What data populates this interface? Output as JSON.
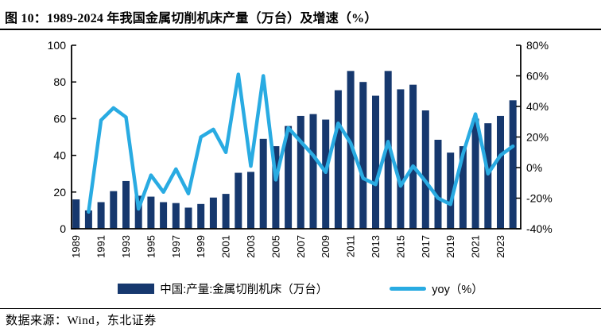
{
  "figure": {
    "title": "图 10：1989-2024 年我国金属切削机床产量（万台）及增速（%）",
    "source": "数据来源：Wind，东北证券"
  },
  "legend": {
    "bars_label": "中国:产量:金属切削机床（万台）",
    "line_label": "yoy（%）"
  },
  "colors": {
    "bar": "#16386e",
    "line": "#29abe2",
    "axis": "#000000"
  },
  "chart_data": {
    "type": "bar",
    "title": "1989-2024 年我国金属切削机床产量（万台）及增速（%）",
    "x": [
      1989,
      1990,
      1991,
      1992,
      1993,
      1994,
      1995,
      1996,
      1997,
      1998,
      1999,
      2000,
      2001,
      2002,
      2003,
      2004,
      2005,
      2006,
      2007,
      2008,
      2009,
      2010,
      2011,
      2012,
      2013,
      2014,
      2015,
      2016,
      2017,
      2018,
      2019,
      2020,
      2021,
      2022,
      2023,
      2024
    ],
    "series": [
      {
        "name": "中国:产量:金属切削机床（万台）",
        "type": "bar",
        "axis": "left",
        "values": [
          16,
          10,
          14.5,
          20.5,
          26,
          18,
          17.5,
          14.5,
          14,
          11.5,
          13.5,
          17,
          19,
          30.5,
          31,
          49,
          45,
          56,
          61.5,
          62.5,
          59.5,
          75.5,
          86,
          80,
          72.5,
          86,
          76,
          78.5,
          64.5,
          48.5,
          41.5,
          45,
          60,
          57.5,
          61.5,
          70
        ]
      },
      {
        "name": "yoy（%）",
        "type": "line",
        "axis": "right",
        "values": [
          null,
          -29,
          31,
          39,
          33,
          -27,
          -5,
          -16,
          -1,
          -17,
          20,
          25,
          10,
          61,
          1,
          60,
          -8,
          26,
          17,
          8,
          -3,
          29,
          16,
          -7,
          -11,
          17,
          -12,
          1,
          -9,
          -20,
          -24,
          9,
          35,
          -4,
          8,
          14
        ]
      }
    ],
    "left_axis": {
      "range": [
        0,
        100
      ],
      "ticks": [
        "0",
        "20",
        "40",
        "60",
        "80",
        "100"
      ]
    },
    "right_axis": {
      "range": [
        -40,
        80
      ],
      "ticks": [
        "-40%",
        "-20%",
        "0%",
        "20%",
        "40%",
        "60%",
        "80%"
      ]
    },
    "x_tick_labels": [
      "1989",
      "1991",
      "1993",
      "1995",
      "1997",
      "1999",
      "2001",
      "2003",
      "2005",
      "2007",
      "2009",
      "2011",
      "2013",
      "2015",
      "2017",
      "2019",
      "2021",
      "2023"
    ],
    "grid": false,
    "legend_position": "bottom"
  }
}
